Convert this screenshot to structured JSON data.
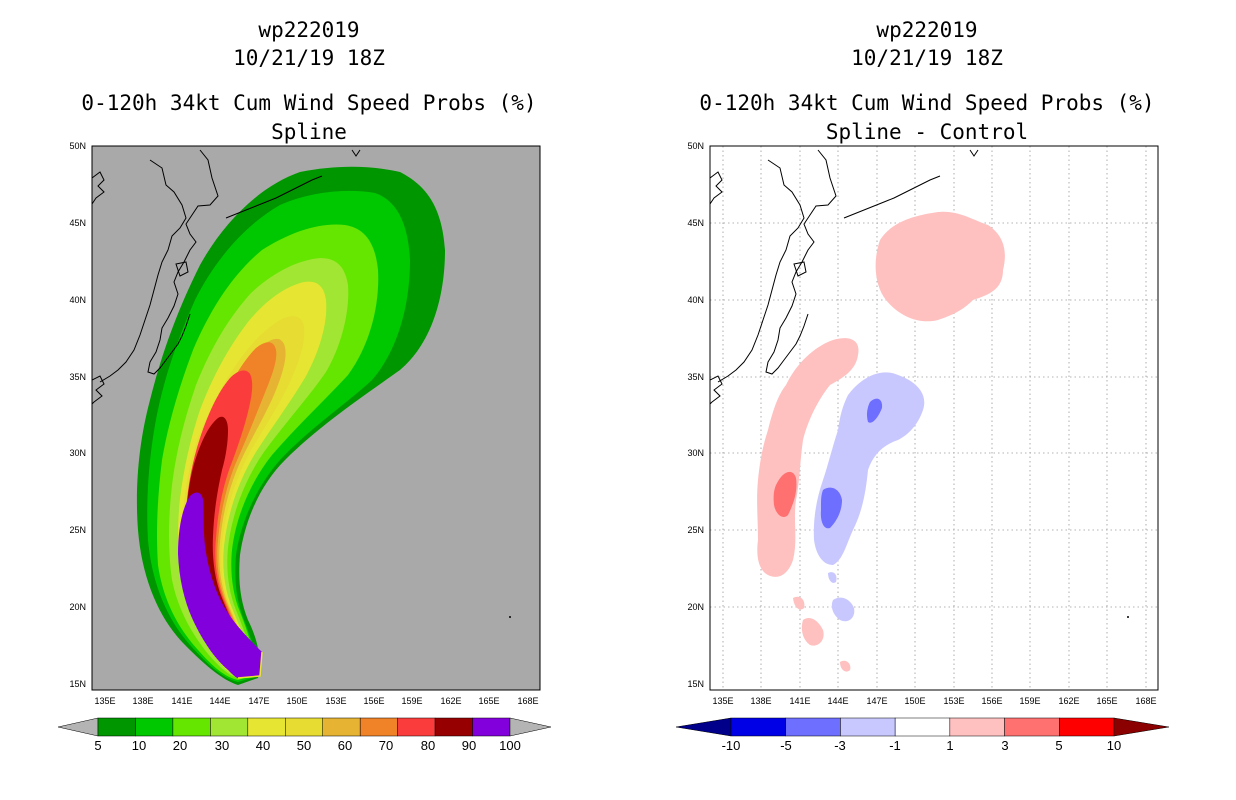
{
  "colors": {
    "land_gray": "#a9a9a9",
    "ocean_white": "#ffffff",
    "coast": "#000000",
    "grid": "#9a9a9a"
  },
  "panels": [
    {
      "id": "left",
      "storm_id": "wp222019",
      "datetime": "10/21/19 18Z",
      "product": "0-120h 34kt Cum Wind Speed Probs (%)",
      "subtitle": "Spline",
      "background": "gray",
      "lat_labels": [
        "50N",
        "45N",
        "40N",
        "35N",
        "30N",
        "25N",
        "20N",
        "15N"
      ],
      "lon_labels": [
        "135E",
        "138E",
        "141E",
        "144E",
        "147E",
        "150E",
        "153E",
        "156E",
        "159E",
        "162E",
        "165E",
        "168E"
      ],
      "colorbar": {
        "labels": [
          "5",
          "10",
          "20",
          "30",
          "40",
          "50",
          "60",
          "70",
          "80",
          "90",
          "100"
        ],
        "colors": [
          "#009600",
          "#00c800",
          "#64e600",
          "#a0e632",
          "#e6e632",
          "#e6dc32",
          "#e6b432",
          "#f08228",
          "#fa3c3c",
          "#960000",
          "#8200dc"
        ],
        "end_color": "#b4b4b4"
      }
    },
    {
      "id": "right",
      "storm_id": "wp222019",
      "datetime": "10/21/19 18Z",
      "product": "0-120h 34kt Cum Wind Speed Probs (%)",
      "subtitle": "Spline - Control",
      "background": "white",
      "lat_labels": [
        "50N",
        "45N",
        "40N",
        "35N",
        "30N",
        "25N",
        "20N",
        "15N"
      ],
      "lon_labels": [
        "135E",
        "138E",
        "141E",
        "144E",
        "147E",
        "150E",
        "153E",
        "156E",
        "159E",
        "162E",
        "165E",
        "168E"
      ],
      "colorbar": {
        "labels": [
          "-10",
          "-5",
          "-3",
          "-1",
          "1",
          "3",
          "5",
          "10"
        ],
        "colors": [
          "#0000e6",
          "#6e6eff",
          "#c8c8ff",
          "#ffffff",
          "#ffc0c0",
          "#ff7070",
          "#ff0000"
        ],
        "end_left": "#00008b",
        "end_right": "#8b0000"
      }
    }
  ]
}
